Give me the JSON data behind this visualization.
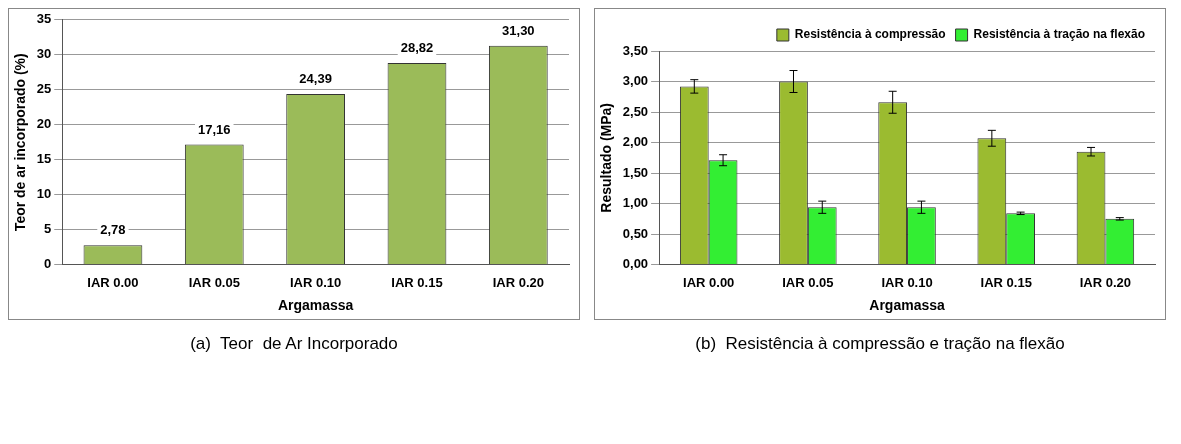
{
  "chart_data": [
    {
      "type": "bar",
      "categories": [
        "IAR 0.00",
        "IAR 0.05",
        "IAR 0.10",
        "IAR 0.15",
        "IAR 0.20"
      ],
      "values": [
        2.78,
        17.16,
        24.39,
        28.82,
        31.3
      ],
      "value_labels": [
        "2,78",
        "17,16",
        "24,39",
        "28,82",
        "31,30"
      ],
      "color": "#9bbb59",
      "xlabel": "Argamassa",
      "ylabel": "Teor de ar incorporado (%)",
      "ylim": [
        0,
        35
      ],
      "yticks": [
        0,
        5,
        10,
        15,
        20,
        25,
        30,
        35
      ],
      "grid": "y",
      "legend": false,
      "annotations": [
        "(a)  Teor  de Ar Incorporado"
      ]
    },
    {
      "type": "bar",
      "categories": [
        "IAR 0.00",
        "IAR 0.05",
        "IAR 0.10",
        "IAR 0.15",
        "IAR 0.20"
      ],
      "series": [
        {
          "name": "Resistência à compressão",
          "color": "#9bbb30",
          "values": [
            2.92,
            3.0,
            2.66,
            2.07,
            1.85
          ],
          "errors": [
            0.11,
            0.18,
            0.18,
            0.13,
            0.07
          ]
        },
        {
          "name": "Resistência à tração na flexão",
          "color": "#33ee33",
          "values": [
            1.71,
            0.94,
            0.94,
            0.84,
            0.75
          ],
          "errors": [
            0.09,
            0.1,
            0.1,
            0.02,
            0.02
          ]
        }
      ],
      "xlabel": "Argamassa",
      "ylabel": "Resultado (MPa)",
      "ylim": [
        0,
        3.5
      ],
      "yticks": [
        {
          "value": 0,
          "label": "0,00"
        },
        {
          "value": 0.5,
          "label": "0,50"
        },
        {
          "value": 1,
          "label": "1,00"
        },
        {
          "value": 1.5,
          "label": "1,50"
        },
        {
          "value": 2,
          "label": "2,00"
        },
        {
          "value": 2.5,
          "label": "2,50"
        },
        {
          "value": 3,
          "label": "3,00"
        },
        {
          "value": 3.5,
          "label": "3,50"
        }
      ],
      "grid": "y",
      "legend": "top right",
      "annotations": [
        "(b)  Resistência à compressão e tração na flexão"
      ]
    }
  ]
}
